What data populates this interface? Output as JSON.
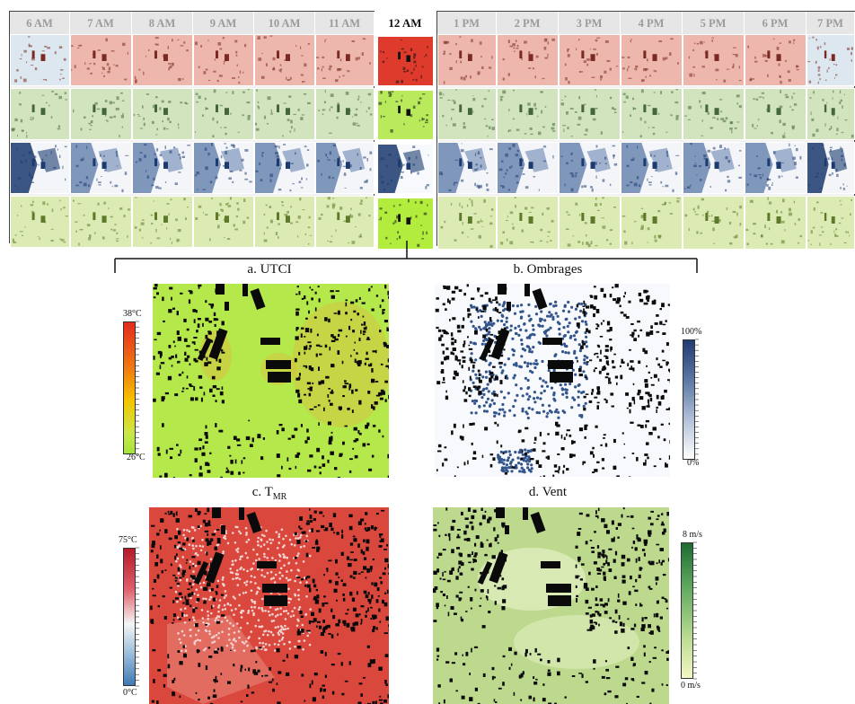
{
  "timeline": {
    "left_hours": [
      "6 AM",
      "7 AM",
      "8 AM",
      "9 AM",
      "10 AM",
      "11 AM"
    ],
    "center_hour": "12 AM",
    "right_hours": [
      "1 PM",
      "2 PM",
      "3 PM",
      "4 PM",
      "5 PM",
      "6 PM",
      "7 PM"
    ]
  },
  "rows": [
    "utci",
    "tmr",
    "ombrages",
    "vent"
  ],
  "panels": {
    "a": {
      "title": "a. UTCI"
    },
    "b": {
      "title": "b. Ombrages"
    },
    "c": {
      "title_main": "c. T",
      "title_sub": "MR"
    },
    "d": {
      "title": "d. Vent"
    }
  },
  "legends": {
    "utci": {
      "max": "38°C",
      "min": "26°C",
      "colors": [
        "#e32b1f",
        "#f07a10",
        "#f5c400",
        "#c9e84a",
        "#a6e33e"
      ]
    },
    "ombrages": {
      "max": "100%",
      "min": "0%",
      "colors": [
        "#1f3b73",
        "#5f7ba8",
        "#b9c7dc",
        "#ffffff"
      ]
    },
    "tmr": {
      "max": "75°C",
      "min": "0°C",
      "colors": [
        "#b31a2b",
        "#e0606b",
        "#f5f5f5",
        "#8fb5d6",
        "#3e79b5"
      ]
    },
    "vent": {
      "max": "8 m/s",
      "min": "0 m/s",
      "colors": [
        "#1d6b32",
        "#5aa55b",
        "#b9dc92",
        "#f5f7c2"
      ]
    }
  },
  "colors": {
    "utci_cell": "#e8a196",
    "utci_active": "#df3b2d",
    "tmr_cell": "#c7dcb0",
    "tmr_active": "#a6e33e",
    "shade_cell": "#f1f4f8",
    "shade_dark": "#1b3a6f",
    "wind_cell": "#d6e8ae",
    "wind_active": "#b2ec3c",
    "map_utci": "#b5e84a",
    "map_utci_warm": "#e3b33c",
    "map_shade_bg": "#f7f9fc",
    "map_shade_dot": "#33558b",
    "map_tmr": "#d9473d",
    "map_tmr_light": "#f3d2cf",
    "map_wind": "#bcd98d",
    "map_wind_light": "#e4efc4",
    "building": "#0a0a0a"
  }
}
